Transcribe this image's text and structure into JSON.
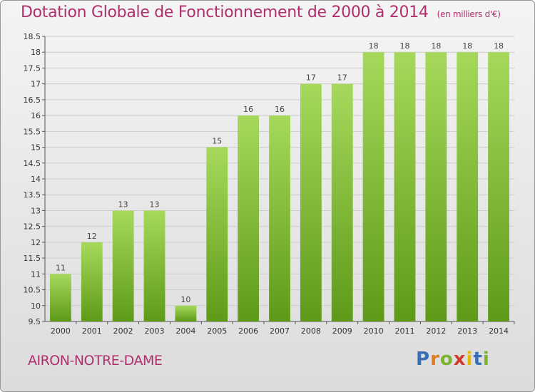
{
  "header": {
    "title": "Dotation Globale de Fonctionnement de 2000 à 2014",
    "unit": "(en milliers d'€)"
  },
  "footer": {
    "commune": "AIRON-NOTRE-DAME",
    "logo": {
      "letters": [
        "P",
        "r",
        "o",
        "x",
        "i",
        "t",
        "i"
      ],
      "colors": [
        "#3a6fb7",
        "#e07b1f",
        "#7bb32e",
        "#d23b2e",
        "#e6b800",
        "#3a6fb7",
        "#7bb32e"
      ]
    }
  },
  "colors": {
    "bar_top": "#a6d95b",
    "bar_bottom": "#5e9a18",
    "title": "#b0306e",
    "grid": "#cccccc"
  },
  "chart_data": {
    "type": "bar",
    "title": "Dotation Globale de Fonctionnement de 2000 à 2014",
    "subtitle": "(en milliers d'€)",
    "xlabel": "",
    "ylabel": "",
    "categories": [
      "2000",
      "2001",
      "2002",
      "2003",
      "2004",
      "2005",
      "2006",
      "2007",
      "2008",
      "2009",
      "2010",
      "2011",
      "2012",
      "2013",
      "2014"
    ],
    "values": [
      11,
      12,
      13,
      13,
      10,
      15,
      16,
      16,
      17,
      17,
      18,
      18,
      18,
      18,
      18
    ],
    "data_labels": [
      "11",
      "12",
      "13",
      "13",
      "10",
      "15",
      "16",
      "16",
      "17",
      "17",
      "18",
      "18",
      "18",
      "18",
      "18"
    ],
    "ylim": [
      9.5,
      18.5
    ],
    "yticks": [
      9.5,
      10,
      10.5,
      11,
      11.5,
      12,
      12.5,
      13,
      13.5,
      14,
      14.5,
      15,
      15.5,
      16,
      16.5,
      17,
      17.5,
      18,
      18.5
    ],
    "ytick_labels": [
      "9.5",
      "10",
      "10.5",
      "11",
      "11.5",
      "12",
      "12.5",
      "13",
      "13.5",
      "14",
      "14.5",
      "15",
      "15.5",
      "16",
      "16.5",
      "17",
      "17.5",
      "18",
      "18.5"
    ],
    "grid": true,
    "legend": "none"
  }
}
